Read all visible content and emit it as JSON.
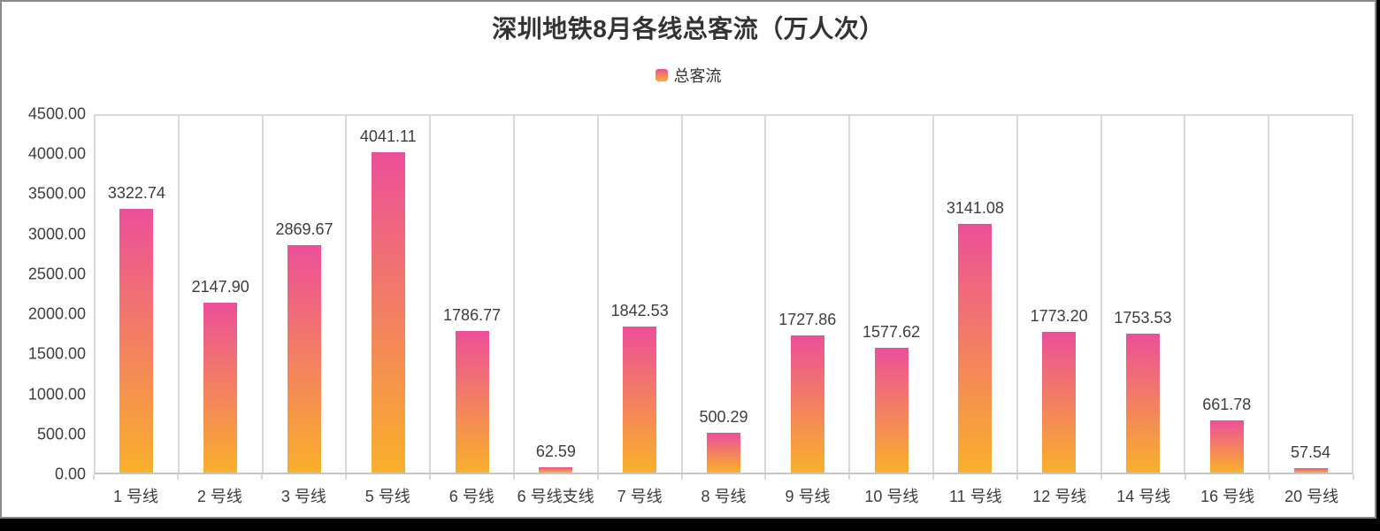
{
  "window": {
    "background_color": "#000000",
    "card_background": "#ffffff",
    "card_border_color": "#8a8a8a"
  },
  "chart_data": {
    "type": "bar",
    "title": "深圳地铁8月各线总客流（万人次）",
    "legend": [
      {
        "label": "总客流"
      }
    ],
    "legend_position": "top-center",
    "categories": [
      "1 号线",
      "2 号线",
      "3 号线",
      "5 号线",
      "6 号线",
      "6 号线支线",
      "7 号线",
      "8 号线",
      "9 号线",
      "10 号线",
      "11 号线",
      "12 号线",
      "14 号线",
      "16 号线",
      "20 号线"
    ],
    "series": [
      {
        "name": "总客流",
        "values": [
          3322.74,
          2147.9,
          2869.67,
          4041.11,
          1786.77,
          62.59,
          1842.53,
          500.29,
          1727.86,
          1577.62,
          3141.08,
          1773.2,
          1753.53,
          661.78,
          57.54
        ]
      }
    ],
    "xlabel": "",
    "ylabel": "",
    "ylim": [
      0,
      4500
    ],
    "y_ticks": [
      4500,
      4000,
      3500,
      3000,
      2500,
      2000,
      1500,
      1000,
      500,
      0
    ],
    "tick_label_decimals": 2,
    "value_label_decimals": 2,
    "grid": {
      "horizontal_gridlines": false,
      "vertical_category_dividers": true
    },
    "colors": {
      "bar_gradient_top": "#ec4f99",
      "bar_gradient_bottom": "#f9b02b",
      "divider": "#d9d9d9",
      "axis_line": "#c6c6c6",
      "label_text": "#3d3d3d",
      "title_text": "#333333"
    }
  }
}
